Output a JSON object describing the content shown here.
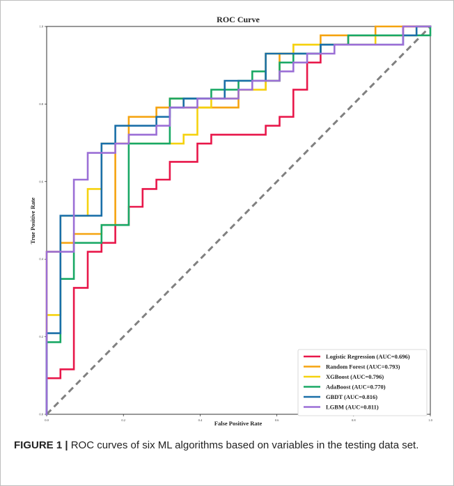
{
  "figure": {
    "caption_label": "FIGURE 1 |",
    "caption_text": " ROC curves of six ML algorithms based on variables in the testing data set."
  },
  "colors": {
    "frame": "#bdbdbd",
    "diagonal": "#808080"
  },
  "chart_data": {
    "type": "line",
    "title": "ROC Curve",
    "xlabel": "False Positive Rate",
    "ylabel": "True Positive Rate",
    "xlim": [
      0,
      1
    ],
    "ylim": [
      0,
      1
    ],
    "grid": false,
    "legend_position": "bottom-right",
    "x_ticks": [
      "0.0",
      "0.2",
      "0.4",
      "0.6",
      "0.8",
      "1.0"
    ],
    "y_ticks": [
      "0.0",
      "0.2",
      "0.4",
      "0.6",
      "0.8",
      "1.0"
    ],
    "diagonal": {
      "x": [
        0,
        1
      ],
      "y": [
        0,
        1
      ],
      "style": "dashed"
    },
    "series": [
      {
        "name": "Logistic Regression (AUC=0.696)",
        "color": "#e8174a",
        "points": [
          [
            0,
            0
          ],
          [
            0,
            0.093
          ],
          [
            0.036,
            0.093
          ],
          [
            0.036,
            0.116
          ],
          [
            0.071,
            0.116
          ],
          [
            0.071,
            0.326
          ],
          [
            0.107,
            0.326
          ],
          [
            0.107,
            0.419
          ],
          [
            0.143,
            0.419
          ],
          [
            0.143,
            0.442
          ],
          [
            0.179,
            0.442
          ],
          [
            0.179,
            0.488
          ],
          [
            0.214,
            0.488
          ],
          [
            0.214,
            0.535
          ],
          [
            0.25,
            0.535
          ],
          [
            0.25,
            0.581
          ],
          [
            0.286,
            0.581
          ],
          [
            0.286,
            0.605
          ],
          [
            0.321,
            0.605
          ],
          [
            0.321,
            0.651
          ],
          [
            0.393,
            0.651
          ],
          [
            0.393,
            0.698
          ],
          [
            0.429,
            0.698
          ],
          [
            0.429,
            0.721
          ],
          [
            0.571,
            0.721
          ],
          [
            0.571,
            0.744
          ],
          [
            0.607,
            0.744
          ],
          [
            0.607,
            0.767
          ],
          [
            0.643,
            0.767
          ],
          [
            0.643,
            0.837
          ],
          [
            0.679,
            0.837
          ],
          [
            0.679,
            0.907
          ],
          [
            0.714,
            0.907
          ],
          [
            0.714,
            0.953
          ],
          [
            0.786,
            0.953
          ],
          [
            0.786,
            0.977
          ],
          [
            0.929,
            0.977
          ],
          [
            0.929,
            1
          ],
          [
            1,
            1
          ]
        ]
      },
      {
        "name": "Random Forest (AUC=0.793)",
        "color": "#f5a30f",
        "points": [
          [
            0,
            0
          ],
          [
            0,
            0.419
          ],
          [
            0.036,
            0.419
          ],
          [
            0.036,
            0.442
          ],
          [
            0.071,
            0.442
          ],
          [
            0.071,
            0.465
          ],
          [
            0.143,
            0.465
          ],
          [
            0.143,
            0.488
          ],
          [
            0.179,
            0.488
          ],
          [
            0.179,
            0.698
          ],
          [
            0.214,
            0.698
          ],
          [
            0.214,
            0.767
          ],
          [
            0.286,
            0.767
          ],
          [
            0.286,
            0.791
          ],
          [
            0.321,
            0.791
          ],
          [
            0.321,
            0.814
          ],
          [
            0.357,
            0.814
          ],
          [
            0.357,
            0.791
          ],
          [
            0.5,
            0.791
          ],
          [
            0.5,
            0.837
          ],
          [
            0.571,
            0.837
          ],
          [
            0.571,
            0.86
          ],
          [
            0.607,
            0.86
          ],
          [
            0.607,
            0.93
          ],
          [
            0.643,
            0.93
          ],
          [
            0.643,
            0.953
          ],
          [
            0.714,
            0.953
          ],
          [
            0.714,
            0.977
          ],
          [
            0.857,
            0.977
          ],
          [
            0.857,
            1
          ],
          [
            1,
            1
          ]
        ]
      },
      {
        "name": "XGBoost (AUC=0.796)",
        "color": "#f5d20f",
        "points": [
          [
            0,
            0
          ],
          [
            0,
            0.256
          ],
          [
            0.036,
            0.256
          ],
          [
            0.036,
            0.512
          ],
          [
            0.107,
            0.512
          ],
          [
            0.107,
            0.581
          ],
          [
            0.143,
            0.581
          ],
          [
            0.143,
            0.698
          ],
          [
            0.321,
            0.698
          ],
          [
            0.321,
            0.698
          ],
          [
            0.357,
            0.698
          ],
          [
            0.357,
            0.721
          ],
          [
            0.393,
            0.721
          ],
          [
            0.393,
            0.791
          ],
          [
            0.429,
            0.791
          ],
          [
            0.429,
            0.814
          ],
          [
            0.5,
            0.814
          ],
          [
            0.5,
            0.837
          ],
          [
            0.571,
            0.837
          ],
          [
            0.571,
            0.93
          ],
          [
            0.643,
            0.93
          ],
          [
            0.643,
            0.953
          ],
          [
            0.857,
            0.953
          ],
          [
            0.857,
            0.977
          ],
          [
            0.964,
            0.977
          ],
          [
            0.964,
            1
          ],
          [
            1,
            1
          ]
        ]
      },
      {
        "name": "AdaBoost (AUC=0.770)",
        "color": "#19a865",
        "points": [
          [
            0,
            0
          ],
          [
            0,
            0.186
          ],
          [
            0.036,
            0.186
          ],
          [
            0.036,
            0.349
          ],
          [
            0.071,
            0.349
          ],
          [
            0.071,
            0.442
          ],
          [
            0.143,
            0.442
          ],
          [
            0.143,
            0.488
          ],
          [
            0.214,
            0.488
          ],
          [
            0.214,
            0.698
          ],
          [
            0.321,
            0.698
          ],
          [
            0.321,
            0.814
          ],
          [
            0.429,
            0.814
          ],
          [
            0.429,
            0.837
          ],
          [
            0.5,
            0.837
          ],
          [
            0.5,
            0.86
          ],
          [
            0.536,
            0.86
          ],
          [
            0.536,
            0.884
          ],
          [
            0.571,
            0.884
          ],
          [
            0.571,
            0.86
          ],
          [
            0.607,
            0.86
          ],
          [
            0.607,
            0.907
          ],
          [
            0.643,
            0.907
          ],
          [
            0.643,
            0.93
          ],
          [
            0.714,
            0.93
          ],
          [
            0.714,
            0.953
          ],
          [
            0.786,
            0.953
          ],
          [
            0.786,
            0.977
          ],
          [
            0.964,
            0.977
          ],
          [
            0.964,
            0.977
          ],
          [
            1,
            0.977
          ],
          [
            1,
            1
          ]
        ]
      },
      {
        "name": "GBDT (AUC=0.816)",
        "color": "#1a6fa8",
        "points": [
          [
            0,
            0
          ],
          [
            0,
            0.209
          ],
          [
            0.036,
            0.209
          ],
          [
            0.036,
            0.512
          ],
          [
            0.143,
            0.512
          ],
          [
            0.143,
            0.698
          ],
          [
            0.179,
            0.698
          ],
          [
            0.179,
            0.744
          ],
          [
            0.286,
            0.744
          ],
          [
            0.286,
            0.767
          ],
          [
            0.321,
            0.767
          ],
          [
            0.321,
            0.791
          ],
          [
            0.357,
            0.791
          ],
          [
            0.357,
            0.814
          ],
          [
            0.464,
            0.814
          ],
          [
            0.464,
            0.86
          ],
          [
            0.536,
            0.86
          ],
          [
            0.536,
            0.86
          ],
          [
            0.571,
            0.86
          ],
          [
            0.571,
            0.93
          ],
          [
            0.714,
            0.93
          ],
          [
            0.714,
            0.953
          ],
          [
            0.929,
            0.953
          ],
          [
            0.929,
            0.977
          ],
          [
            0.964,
            0.977
          ],
          [
            0.964,
            1
          ],
          [
            1,
            1
          ]
        ]
      },
      {
        "name": "LGBM (AUC=0.811)",
        "color": "#9b6fd6",
        "points": [
          [
            0,
            0
          ],
          [
            0,
            0.419
          ],
          [
            0.071,
            0.419
          ],
          [
            0.071,
            0.605
          ],
          [
            0.107,
            0.605
          ],
          [
            0.107,
            0.674
          ],
          [
            0.179,
            0.674
          ],
          [
            0.179,
            0.698
          ],
          [
            0.214,
            0.698
          ],
          [
            0.214,
            0.721
          ],
          [
            0.286,
            0.721
          ],
          [
            0.286,
            0.744
          ],
          [
            0.321,
            0.744
          ],
          [
            0.321,
            0.791
          ],
          [
            0.393,
            0.791
          ],
          [
            0.393,
            0.814
          ],
          [
            0.5,
            0.814
          ],
          [
            0.5,
            0.837
          ],
          [
            0.536,
            0.837
          ],
          [
            0.536,
            0.86
          ],
          [
            0.607,
            0.86
          ],
          [
            0.607,
            0.884
          ],
          [
            0.643,
            0.884
          ],
          [
            0.643,
            0.907
          ],
          [
            0.679,
            0.907
          ],
          [
            0.679,
            0.93
          ],
          [
            0.75,
            0.93
          ],
          [
            0.75,
            0.953
          ],
          [
            0.929,
            0.953
          ],
          [
            0.929,
            1
          ],
          [
            1,
            1
          ]
        ]
      }
    ]
  }
}
